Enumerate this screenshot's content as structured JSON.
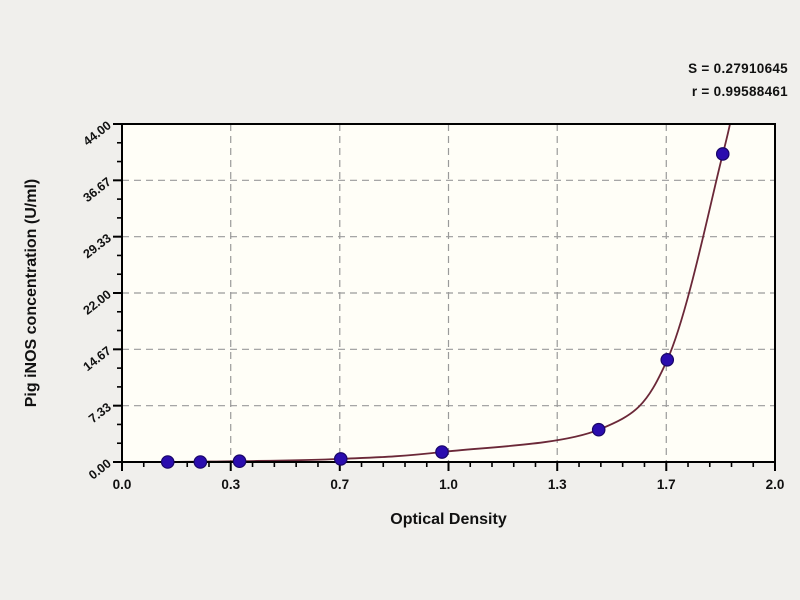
{
  "stats": {
    "s_text": "S = 0.27910645",
    "r_text": "r = 0.99588461"
  },
  "chart_data": {
    "type": "scatter",
    "title": "",
    "xlabel": "Optical Density",
    "ylabel": "Pig iNOS concentration (U/ml)",
    "xlim": [
      0.0,
      2.0
    ],
    "ylim": [
      0.0,
      44.0
    ],
    "grid": true,
    "grid_style": "dashed",
    "legend_position": "none",
    "x_ticks": {
      "values": [
        0,
        0.333,
        0.667,
        1.0,
        1.333,
        1.667,
        2.0
      ],
      "labels": [
        "0.0",
        "0.3",
        "0.7",
        "1.0",
        "1.3",
        "1.7",
        "2.0"
      ],
      "minors_per_interval": 4
    },
    "y_ticks": {
      "values": [
        0,
        7.333,
        14.667,
        22.0,
        29.333,
        36.667,
        44.0
      ],
      "labels": [
        "0.00",
        "7.33",
        "14.67",
        "22.00",
        "29.33",
        "36.67",
        "44.00"
      ],
      "minors_per_interval": 2
    },
    "series": [
      {
        "name": "standard-points",
        "type": "scatter",
        "x": [
          0.14,
          0.24,
          0.36,
          0.67,
          0.98,
          1.46,
          1.67,
          1.84
        ],
        "y": [
          0.0,
          0.0,
          0.1,
          0.4,
          1.3,
          4.2,
          13.3,
          40.1
        ]
      },
      {
        "name": "fitted-curve",
        "type": "line",
        "x": [
          0.0,
          0.14,
          0.24,
          0.36,
          0.67,
          0.98,
          1.46,
          1.67,
          1.84,
          1.875
        ],
        "y": [
          0.0,
          0.0,
          0.05,
          0.1,
          0.4,
          1.3,
          4.2,
          13.3,
          40.1,
          47.0
        ]
      }
    ],
    "colors": {
      "page_bg": "#f0efec",
      "plot_bg": "#fffef7",
      "axis": "#000000",
      "grid": "#9a9a9a",
      "curve": "#6b2838",
      "marker_fill": "#2a0cae",
      "marker_stroke": "#190668",
      "text": "#111111"
    }
  }
}
